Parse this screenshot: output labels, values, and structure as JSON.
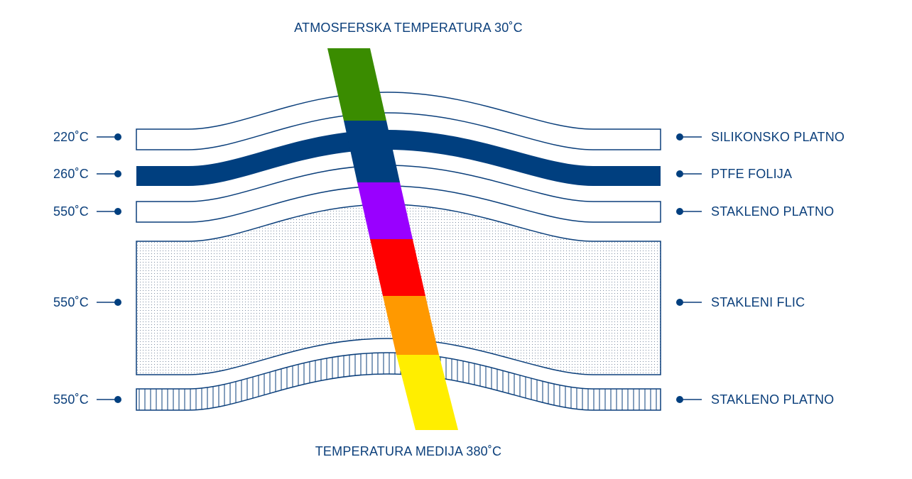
{
  "top_label": "ATMOSFERSKA TEMPERATURA 30˚C",
  "bottom_label": "TEMPERATURA MEDIJA 380˚C",
  "layers": [
    {
      "name": "SILIKONSKO PLATNO",
      "temperature": "220˚C"
    },
    {
      "name": "PTFE FOLIJA",
      "temperature": "260˚C"
    },
    {
      "name": "STAKLENO PLATNO",
      "temperature": "550˚C"
    },
    {
      "name": "STAKLENI FLIC",
      "temperature": "550˚C"
    },
    {
      "name": "STAKLENO PLATNO",
      "temperature": "550˚C"
    }
  ],
  "gradient_colors": [
    "#3a8c00",
    "#003f7f",
    "#9900ff",
    "#ff0000",
    "#ff9900",
    "#ffee00"
  ],
  "accent_color": "#003f7f"
}
